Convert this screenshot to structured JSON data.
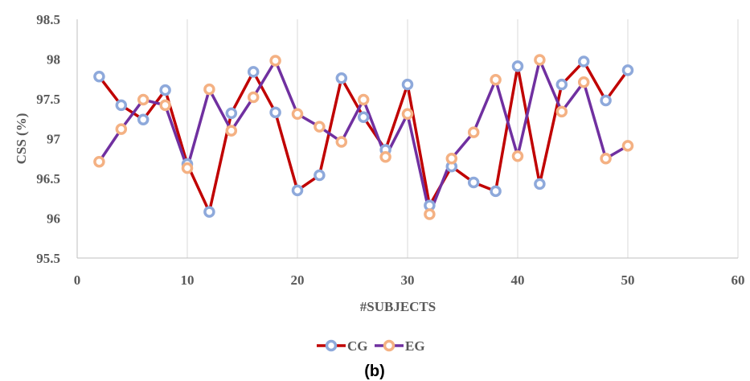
{
  "chart_data": {
    "type": "line",
    "xlabel": "#SUBJECTS",
    "ylabel": "CSS (%)",
    "caption": "(b)",
    "xlim": [
      0,
      60
    ],
    "ylim": [
      95.5,
      98.5
    ],
    "xticks": [
      "0",
      "10",
      "20",
      "30",
      "40",
      "50",
      "60"
    ],
    "yticks": [
      "95.5",
      "96",
      "96.5",
      "97",
      "97.5",
      "98",
      "98.5"
    ],
    "grid": "vertical",
    "legend_position": "bottom",
    "x": [
      2,
      4,
      6,
      8,
      10,
      12,
      14,
      16,
      18,
      20,
      22,
      24,
      26,
      28,
      30,
      32,
      34,
      36,
      38,
      40,
      42,
      44,
      46,
      48,
      50
    ],
    "series": [
      {
        "name": "CG",
        "line_color": "#C00000",
        "marker_color": "#8EA9DB",
        "values": [
          97.78,
          97.42,
          97.24,
          97.61,
          96.68,
          96.08,
          97.32,
          97.84,
          97.33,
          96.35,
          96.54,
          97.76,
          97.27,
          96.86,
          97.68,
          96.16,
          96.65,
          96.45,
          96.34,
          97.91,
          96.43,
          97.68,
          97.97,
          97.48,
          97.86
        ]
      },
      {
        "name": "EG",
        "line_color": "#7030A0",
        "marker_color": "#F4B183",
        "values": [
          96.71,
          97.12,
          97.49,
          97.42,
          96.63,
          97.62,
          97.1,
          97.52,
          97.98,
          97.31,
          97.15,
          96.96,
          97.49,
          96.77,
          97.31,
          96.05,
          96.75,
          97.08,
          97.74,
          96.78,
          97.99,
          97.34,
          97.71,
          96.75,
          96.91
        ]
      }
    ]
  }
}
